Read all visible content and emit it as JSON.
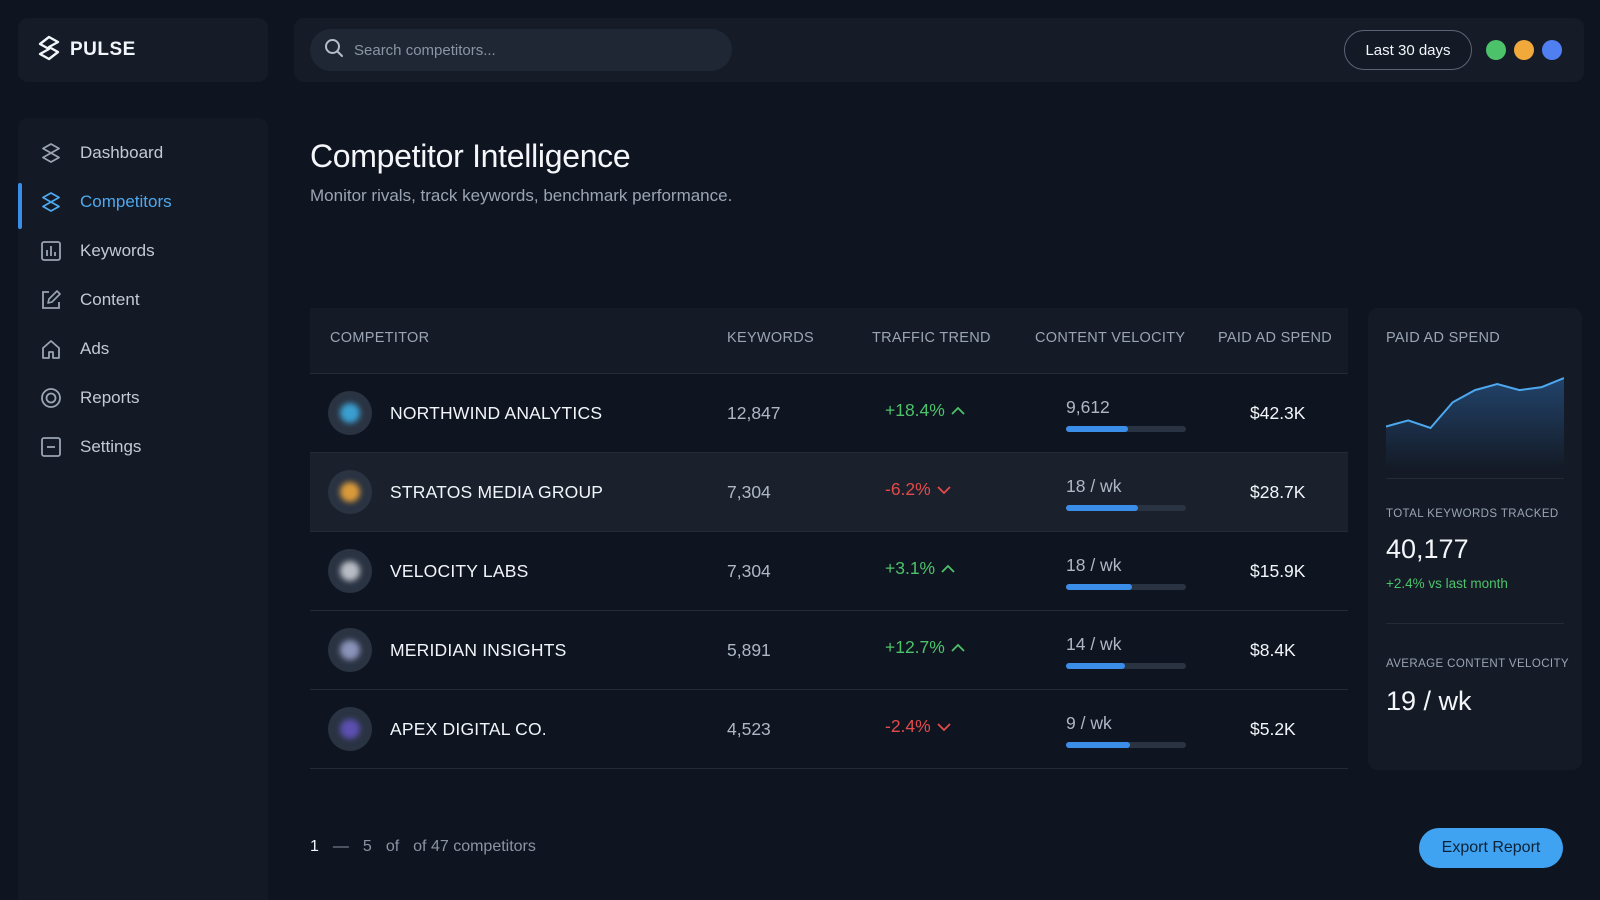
{
  "app": {
    "name": "PULSE"
  },
  "topbar": {
    "search_placeholder": "Search competitors...",
    "date_range": "Last 30 days",
    "status_dots": [
      "#4cc26a",
      "#f2a93b",
      "#4f7ff0"
    ]
  },
  "sidebar": {
    "items": [
      {
        "label": "Dashboard",
        "icon": "pulse-logo-icon",
        "active": false
      },
      {
        "label": "Competitors",
        "icon": "pulse-logo-icon",
        "active": true
      },
      {
        "label": "Keywords",
        "icon": "bar-chart-icon",
        "active": false
      },
      {
        "label": "Content",
        "icon": "edit-square-icon",
        "active": false
      },
      {
        "label": "Ads",
        "icon": "home-icon",
        "active": false
      },
      {
        "label": "Reports",
        "icon": "target-icon",
        "active": false
      },
      {
        "label": "Settings",
        "icon": "minus-square-icon",
        "active": false
      }
    ]
  },
  "main": {
    "title": "Competitor Intelligence",
    "subtitle": "Monitor rivals, track keywords, benchmark performance."
  },
  "table": {
    "headers": [
      "COMPETITOR",
      "KEYWORDS",
      "TRAFFIC TREND",
      "CONTENT VELOCITY",
      "PAID AD SPEND"
    ],
    "rows": [
      {
        "name": "NORTHWIND ANALYTICS",
        "keywords": "12,847",
        "trend": "+18.4%",
        "trend_dir": "up",
        "velocity": "9,612",
        "velocity_fill": 0.52,
        "spend": "$42.3K",
        "avatar_color": "#3a9fd0"
      },
      {
        "name": "STRATOS MEDIA GROUP",
        "keywords": "7,304",
        "trend": "-6.2%",
        "trend_dir": "down",
        "velocity": "18 / wk",
        "velocity_fill": 0.6,
        "spend": "$28.7K",
        "avatar_color": "#d99a3a"
      },
      {
        "name": "VELOCITY LABS",
        "keywords": "7,304",
        "trend": "+3.1%",
        "trend_dir": "up",
        "velocity": "18 / wk",
        "velocity_fill": 0.55,
        "spend": "$15.9K",
        "avatar_color": "#b8bcc4"
      },
      {
        "name": "MERIDIAN INSIGHTS",
        "keywords": "5,891",
        "trend": "+12.7%",
        "trend_dir": "up",
        "velocity": "14 / wk",
        "velocity_fill": 0.49,
        "spend": "$8.4K",
        "avatar_color": "#8a93b8"
      },
      {
        "name": "APEX DIGITAL CO.",
        "keywords": "4,523",
        "trend": "-2.4%",
        "trend_dir": "down",
        "velocity": "9 / wk",
        "velocity_fill": 0.53,
        "spend": "$5.2K",
        "avatar_color": "#5b4fb0"
      }
    ]
  },
  "right_panel": {
    "chart_title": "PAID AD SPEND",
    "sparkline": [
      18,
      22,
      17,
      34,
      42,
      46,
      42,
      44,
      50
    ],
    "total_keywords_label": "TOTAL KEYWORDS TRACKED",
    "total_keywords_value": "40,177",
    "total_keywords_delta": "+2.4% vs last month",
    "avg_velocity_label": "AVERAGE CONTENT VELOCITY",
    "avg_velocity_value": "19 / wk"
  },
  "footer": {
    "page_start": "1",
    "dash": "—",
    "page_end": "5",
    "of": "of",
    "total": "of 47 competitors",
    "export_label": "Export Report"
  }
}
